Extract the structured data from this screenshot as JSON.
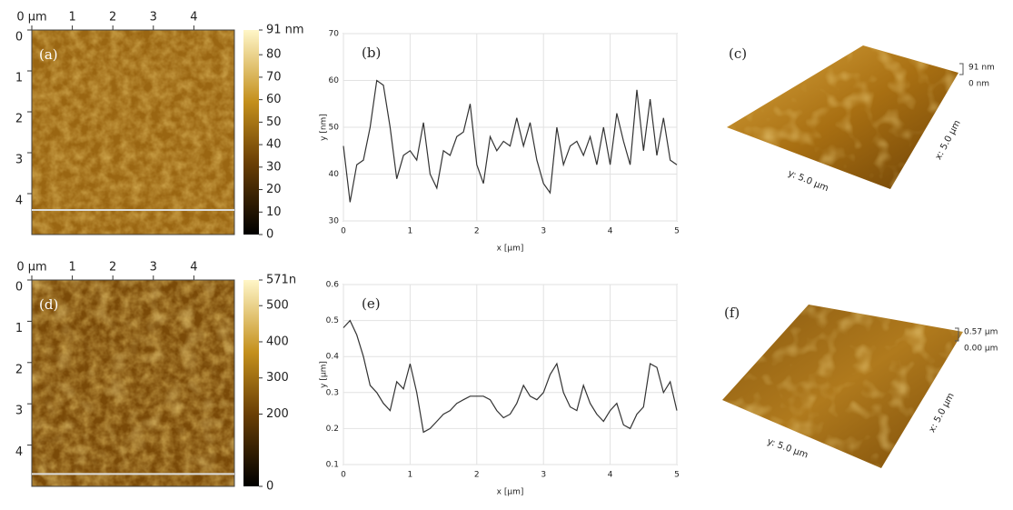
{
  "chart_data": [
    {
      "type": "heatmap",
      "label": "(a)",
      "xlim": [
        0,
        5
      ],
      "xticks": [
        {
          "value": 0,
          "label": "0 µm"
        },
        1,
        2,
        3,
        4
      ],
      "ylim": [
        0,
        5
      ],
      "yticks": [
        0,
        1,
        2,
        3,
        4
      ],
      "clim": [
        0,
        91
      ],
      "cticks": [
        {
          "value": 91,
          "label": "91 nm"
        },
        80,
        70,
        60,
        50,
        40,
        30,
        20,
        10,
        0
      ],
      "profile_y": 4.4
    },
    {
      "type": "line",
      "label": "(b)",
      "xlabel": "x [µm]",
      "ylabel": "y [nm]",
      "xlim": [
        0,
        5
      ],
      "xticks": [
        0,
        1,
        2,
        3,
        4,
        5
      ],
      "ylim": [
        30,
        70
      ],
      "yticks": [
        30,
        40,
        50,
        60,
        70
      ],
      "grid": true,
      "color": "#333333",
      "x": [
        0,
        0.1,
        0.2,
        0.3,
        0.4,
        0.5,
        0.6,
        0.7,
        0.8,
        0.9,
        1.0,
        1.1,
        1.2,
        1.3,
        1.4,
        1.5,
        1.6,
        1.7,
        1.8,
        1.9,
        2.0,
        2.1,
        2.2,
        2.3,
        2.4,
        2.5,
        2.6,
        2.7,
        2.8,
        2.9,
        3.0,
        3.1,
        3.2,
        3.3,
        3.4,
        3.5,
        3.6,
        3.7,
        3.8,
        3.9,
        4.0,
        4.1,
        4.2,
        4.3,
        4.4,
        4.5,
        4.6,
        4.7,
        4.8,
        4.9,
        5.0
      ],
      "values": [
        46,
        34,
        42,
        43,
        50,
        60,
        59,
        50,
        39,
        44,
        45,
        43,
        51,
        40,
        37,
        45,
        44,
        48,
        49,
        55,
        42,
        38,
        48,
        45,
        47,
        46,
        52,
        46,
        51,
        43,
        38,
        36,
        50,
        42,
        46,
        47,
        44,
        48,
        42,
        50,
        42,
        53,
        47,
        42,
        58,
        45,
        56,
        44,
        52,
        43,
        42
      ]
    },
    {
      "type": "surface",
      "label": "(c)",
      "zmax_label": "91 nm",
      "zmin_label": "0 nm",
      "y_label": "y: 5.0 µm",
      "x_label": "x: 5.0 µm"
    },
    {
      "type": "heatmap",
      "label": "(d)",
      "xlim": [
        0,
        5
      ],
      "xticks": [
        {
          "value": 0,
          "label": "0 µm"
        },
        1,
        2,
        3,
        4
      ],
      "ylim": [
        0,
        5
      ],
      "yticks": [
        0,
        1,
        2,
        3,
        4
      ],
      "clim": [
        0,
        571
      ],
      "cticks": [
        {
          "value": 571,
          "label": "571n"
        },
        500,
        400,
        300,
        200,
        0
      ],
      "profile_y": 4.7
    },
    {
      "type": "line",
      "label": "(e)",
      "xlabel": "x [µm]",
      "ylabel": "y [µm]",
      "xlim": [
        0,
        5
      ],
      "xticks": [
        0,
        1,
        2,
        3,
        4,
        5
      ],
      "ylim": [
        0.1,
        0.6
      ],
      "yticks": [
        0.1,
        0.2,
        0.3,
        0.4,
        0.5,
        0.6
      ],
      "grid": true,
      "color": "#333333",
      "x": [
        0,
        0.1,
        0.2,
        0.3,
        0.4,
        0.5,
        0.6,
        0.7,
        0.8,
        0.9,
        1.0,
        1.1,
        1.2,
        1.3,
        1.4,
        1.5,
        1.6,
        1.7,
        1.8,
        1.9,
        2.0,
        2.1,
        2.2,
        2.3,
        2.4,
        2.5,
        2.6,
        2.7,
        2.8,
        2.9,
        3.0,
        3.1,
        3.2,
        3.3,
        3.4,
        3.5,
        3.6,
        3.7,
        3.8,
        3.9,
        4.0,
        4.1,
        4.2,
        4.3,
        4.4,
        4.5,
        4.6,
        4.7,
        4.8,
        4.9,
        5.0
      ],
      "values": [
        0.48,
        0.5,
        0.46,
        0.4,
        0.32,
        0.3,
        0.27,
        0.25,
        0.33,
        0.31,
        0.38,
        0.3,
        0.19,
        0.2,
        0.22,
        0.24,
        0.25,
        0.27,
        0.28,
        0.29,
        0.29,
        0.29,
        0.28,
        0.25,
        0.23,
        0.24,
        0.27,
        0.32,
        0.29,
        0.28,
        0.3,
        0.35,
        0.38,
        0.3,
        0.26,
        0.25,
        0.32,
        0.27,
        0.24,
        0.22,
        0.25,
        0.27,
        0.21,
        0.2,
        0.24,
        0.26,
        0.38,
        0.37,
        0.3,
        0.33,
        0.25
      ]
    },
    {
      "type": "surface",
      "label": "(f)",
      "zmax_label": "0.57 µm",
      "zmin_label": "0.00 µm",
      "y_label": "y: 5.0 µm",
      "x_label": "x: 5.0 µm"
    }
  ]
}
